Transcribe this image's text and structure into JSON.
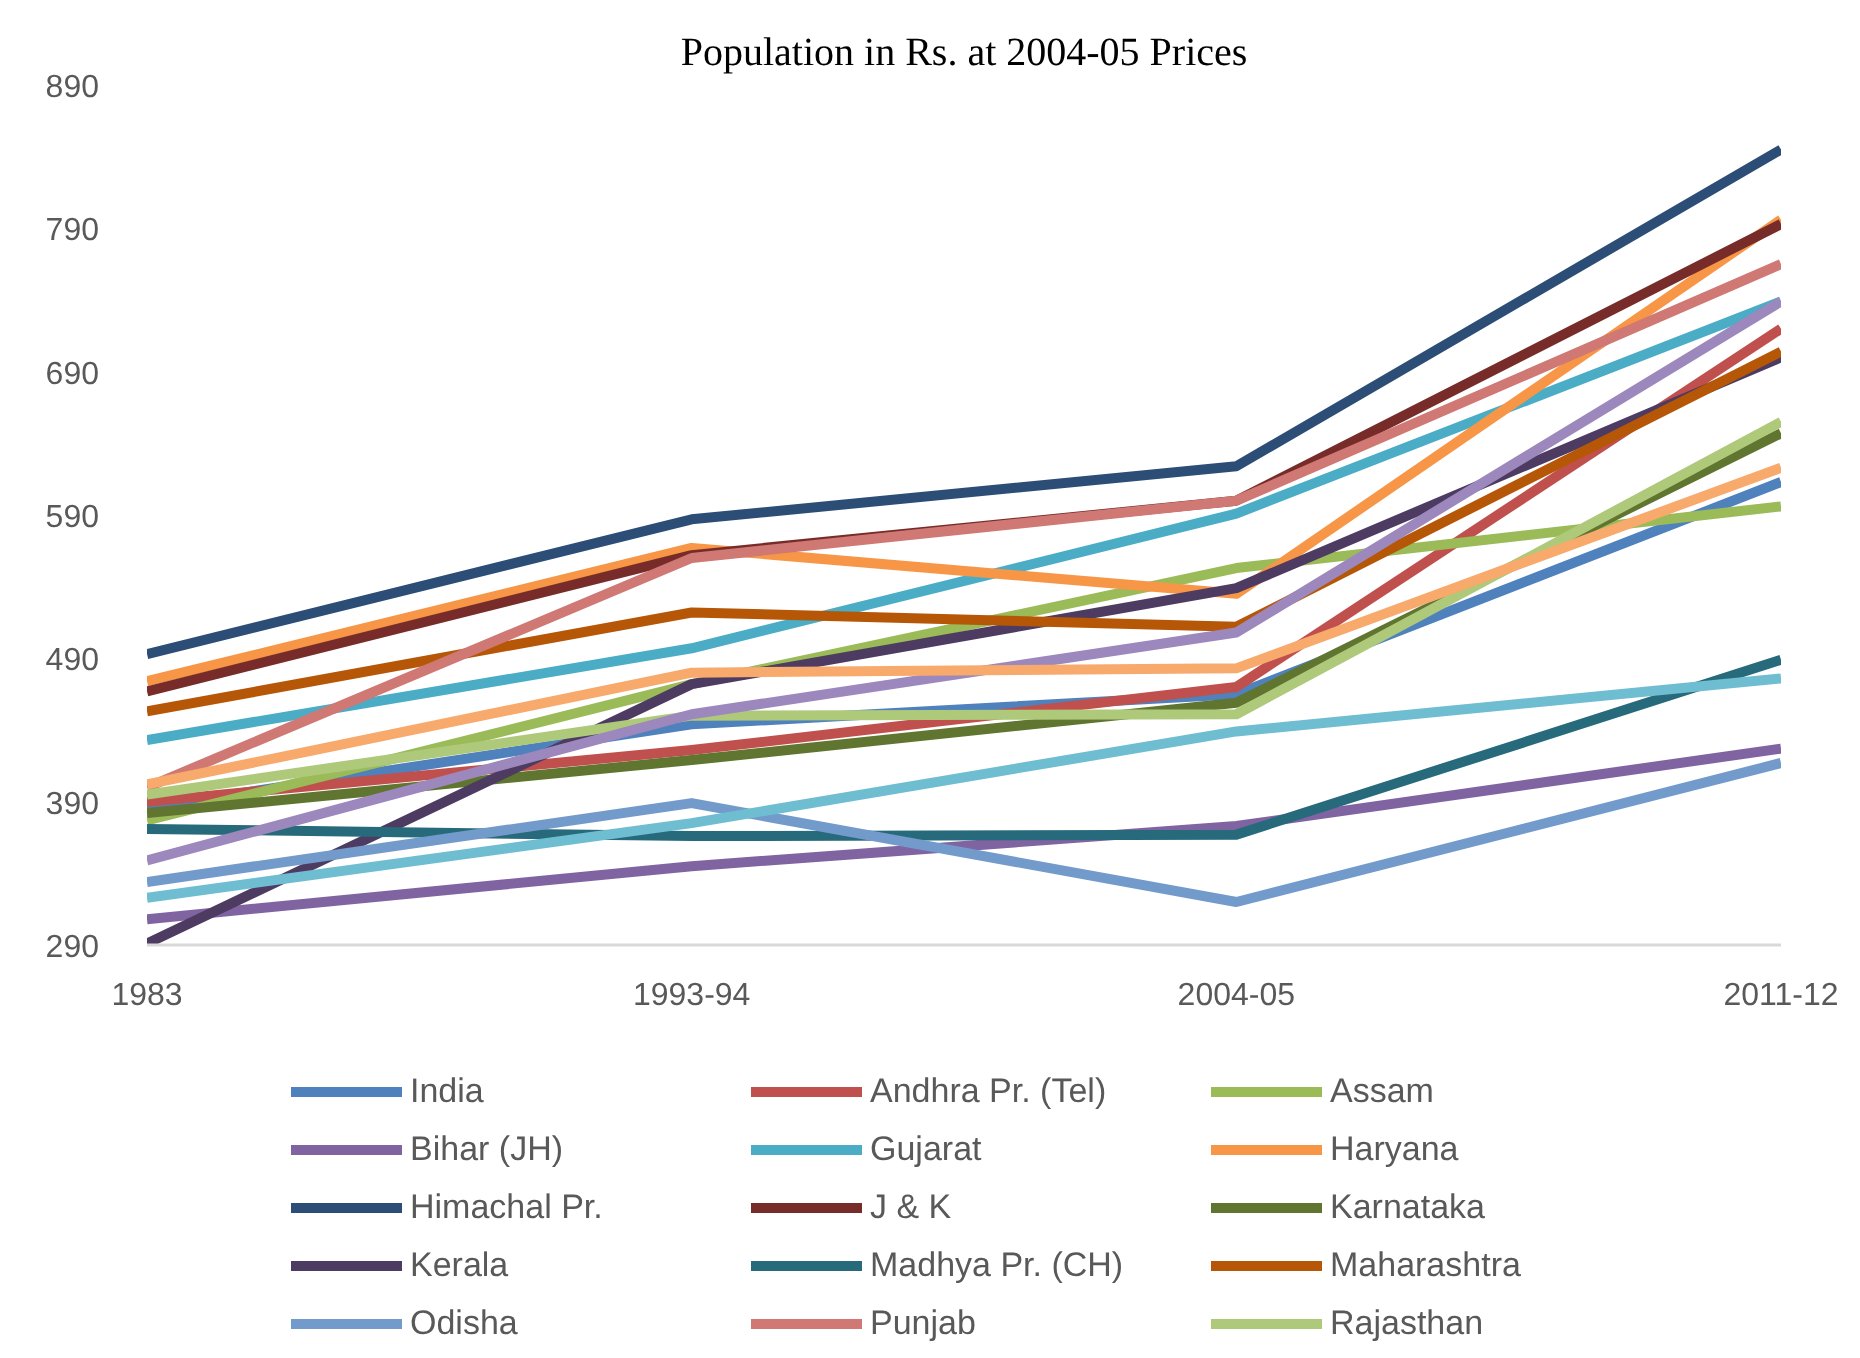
{
  "chart_data": {
    "type": "line",
    "title": "Population in Rs. at 2004-05 Prices",
    "categories": [
      "1983",
      "1993-94",
      "2004-05",
      "2011-12"
    ],
    "ylim": [
      290,
      890
    ],
    "yticks": [
      290,
      390,
      490,
      590,
      690,
      790,
      890
    ],
    "grid": false,
    "legend": "bottom",
    "series": [
      {
        "name": "India",
        "color": "#4f81bd",
        "values": [
          386,
          444,
          465,
          613
        ]
      },
      {
        "name": "Andhra Pr. (Tel)",
        "color": "#c0504d",
        "values": [
          390,
          426,
          470,
          720
        ]
      },
      {
        "name": "Assam",
        "color": "#9bbb59",
        "values": [
          377,
          472,
          553,
          596
        ]
      },
      {
        "name": "Bihar (JH)",
        "color": "#8064a2",
        "values": [
          308,
          345,
          373,
          427
        ]
      },
      {
        "name": "Gujarat",
        "color": "#4bacc6",
        "values": [
          433,
          497,
          591,
          739
        ]
      },
      {
        "name": "Haryana",
        "color": "#f79646",
        "values": [
          474,
          567,
          535,
          796
        ]
      },
      {
        "name": "Himachal Pr.",
        "color": "#2c4d75",
        "values": [
          493,
          587,
          624,
          845
        ]
      },
      {
        "name": "J & K",
        "color": "#772c2a",
        "values": [
          467,
          562,
          600,
          793
        ]
      },
      {
        "name": "Karnataka",
        "color": "#5f7530",
        "values": [
          382,
          419,
          459,
          647
        ]
      },
      {
        "name": "Kerala",
        "color": "#4d3b62",
        "values": [
          291,
          472,
          539,
          700
        ]
      },
      {
        "name": "Madhya Pr. (CH)",
        "color": "#276a7c",
        "values": [
          371,
          366,
          367,
          489
        ]
      },
      {
        "name": "Maharashtra",
        "color": "#b65708",
        "values": [
          453,
          522,
          512,
          704
        ]
      },
      {
        "name": "Odisha",
        "color": "#729aca",
        "values": [
          334,
          389,
          320,
          417
        ]
      },
      {
        "name": "Punjab",
        "color": "#cf7874",
        "values": [
          400,
          560,
          600,
          765
        ]
      },
      {
        "name": "Rajasthan",
        "color": "#afc97a",
        "values": [
          395,
          450,
          451,
          655
        ]
      },
      {
        "color": "#9c88bd",
        "values": [
          349,
          451,
          508,
          739
        ]
      },
      {
        "color": "#6fbdd1",
        "values": [
          323,
          375,
          439,
          476
        ]
      },
      {
        "color": "#f8a96c",
        "values": [
          402,
          480,
          483,
          623
        ]
      }
    ]
  }
}
